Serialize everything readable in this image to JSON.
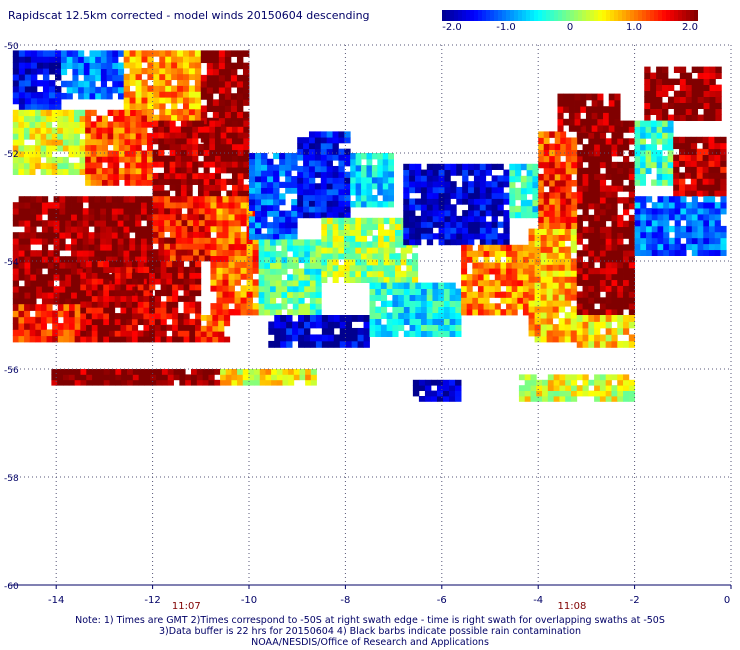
{
  "chart_data": {
    "type": "heatmap",
    "title": "Rapidscat 12.5km corrected - model winds 20150604 descending",
    "xlim": [
      -15,
      0
    ],
    "ylim": [
      -60,
      -50
    ],
    "x_ticks": [
      -14,
      -12,
      -10,
      -8,
      -6,
      -4,
      -2,
      0
    ],
    "y_ticks": [
      -50,
      -52,
      -54,
      -56,
      -58,
      -60
    ],
    "x_tick_labels": [
      "-14",
      "-12",
      "-10",
      "-8",
      "-6",
      "-4",
      "-2",
      "0"
    ],
    "y_tick_labels": [
      "-50",
      "-52",
      "-54",
      "-56",
      "-58",
      "-60"
    ],
    "grid": "dotted",
    "colorbar": {
      "range": [
        -2.0,
        2.0
      ],
      "tick_values": [
        -2.0,
        -1.0,
        0,
        1.0,
        2.0
      ],
      "tick_labels": [
        "-2.0",
        "-1.0",
        "0",
        "1.0",
        "2.0"
      ],
      "colors": [
        "#00008f",
        "#0000ff",
        "#0080ff",
        "#00ffff",
        "#80ff80",
        "#ffff00",
        "#ff8000",
        "#ff0000",
        "#800000"
      ]
    },
    "time_labels": [
      {
        "x": -11.3,
        "text": "11:07"
      },
      {
        "x": -3.3,
        "text": "11:08"
      }
    ],
    "regions": [
      {
        "x": [
          -14.9,
          -13.9
        ],
        "y": [
          -51.2,
          -50.1
        ],
        "value": -1.6
      },
      {
        "x": [
          -13.9,
          -12.6
        ],
        "y": [
          -51.0,
          -50.1
        ],
        "value": -1.1
      },
      {
        "x": [
          -12.6,
          -11.0
        ],
        "y": [
          -51.4,
          -50.1
        ],
        "value": 0.9
      },
      {
        "x": [
          -11.0,
          -10.0
        ],
        "y": [
          -51.8,
          -50.1
        ],
        "value": 2.0
      },
      {
        "x": [
          -14.9,
          -13.4
        ],
        "y": [
          -52.4,
          -51.2
        ],
        "value": 0.4
      },
      {
        "x": [
          -13.4,
          -12.0
        ],
        "y": [
          -52.6,
          -51.2
        ],
        "value": 1.2
      },
      {
        "x": [
          -12.0,
          -10.0
        ],
        "y": [
          -52.8,
          -51.4
        ],
        "value": 1.9
      },
      {
        "x": [
          -14.9,
          -12.0
        ],
        "y": [
          -54.8,
          -52.8
        ],
        "value": 2.0
      },
      {
        "x": [
          -12.0,
          -10.8
        ],
        "y": [
          -54.0,
          -52.8
        ],
        "value": 1.5
      },
      {
        "x": [
          -10.8,
          -9.8
        ],
        "y": [
          -55.0,
          -52.8
        ],
        "value": 1.1
      },
      {
        "x": [
          -14.9,
          -13.5
        ],
        "y": [
          -55.5,
          -54.8
        ],
        "value": 1.4
      },
      {
        "x": [
          -13.5,
          -11.0
        ],
        "y": [
          -55.5,
          -54.0
        ],
        "value": 1.8
      },
      {
        "x": [
          -11.0,
          -10.4
        ],
        "y": [
          -55.5,
          -55.0
        ],
        "value": 1.2
      },
      {
        "x": [
          -10.0,
          -9.0
        ],
        "y": [
          -53.6,
          -52.0
        ],
        "value": -1.2
      },
      {
        "x": [
          -9.0,
          -7.9
        ],
        "y": [
          -53.2,
          -51.6
        ],
        "value": -1.5
      },
      {
        "x": [
          -7.9,
          -7.0
        ],
        "y": [
          -53.0,
          -52.0
        ],
        "value": -0.6
      },
      {
        "x": [
          -9.8,
          -8.5
        ],
        "y": [
          -55.0,
          -53.6
        ],
        "value": -0.2
      },
      {
        "x": [
          -8.5,
          -6.5
        ],
        "y": [
          -54.4,
          -53.2
        ],
        "value": 0.1
      },
      {
        "x": [
          -9.6,
          -7.5
        ],
        "y": [
          -55.6,
          -55.0
        ],
        "value": -1.7
      },
      {
        "x": [
          -7.5,
          -5.6
        ],
        "y": [
          -55.4,
          -54.4
        ],
        "value": -0.5
      },
      {
        "x": [
          -6.8,
          -4.6
        ],
        "y": [
          -53.7,
          -52.2
        ],
        "value": -1.7
      },
      {
        "x": [
          -5.6,
          -4.2
        ],
        "y": [
          -55.0,
          -53.7
        ],
        "value": 1.0
      },
      {
        "x": [
          -4.6,
          -4.0
        ],
        "y": [
          -53.2,
          -52.2
        ],
        "value": -0.4
      },
      {
        "x": [
          -4.2,
          -3.2
        ],
        "y": [
          -55.5,
          -53.4
        ],
        "value": 0.8
      },
      {
        "x": [
          -3.2,
          -2.0
        ],
        "y": [
          -55.0,
          -51.4
        ],
        "value": 2.0
      },
      {
        "x": [
          -4.0,
          -3.2
        ],
        "y": [
          -53.4,
          -51.6
        ],
        "value": 1.3
      },
      {
        "x": [
          -3.6,
          -2.3
        ],
        "y": [
          -51.6,
          -50.9
        ],
        "value": 2.0
      },
      {
        "x": [
          -3.2,
          -2.0
        ],
        "y": [
          -55.6,
          -55.0
        ],
        "value": 0.6
      },
      {
        "x": [
          -1.8,
          -0.2
        ],
        "y": [
          -51.4,
          -50.4
        ],
        "value": 2.0
      },
      {
        "x": [
          -2.0,
          -1.2
        ],
        "y": [
          -52.6,
          -51.4
        ],
        "value": -0.3
      },
      {
        "x": [
          -1.2,
          -0.1
        ],
        "y": [
          -52.8,
          -51.7
        ],
        "value": 1.8
      },
      {
        "x": [
          -2.0,
          -0.1
        ],
        "y": [
          -53.9,
          -52.8
        ],
        "value": -1.1
      },
      {
        "x": [
          -4.4,
          -2.0
        ],
        "y": [
          -56.6,
          -56.1
        ],
        "value": 0.4
      },
      {
        "x": [
          -6.6,
          -5.6
        ],
        "y": [
          -56.6,
          -56.2
        ],
        "value": -1.9
      },
      {
        "x": [
          -14.1,
          -10.6
        ],
        "y": [
          -56.3,
          -56.0
        ],
        "value": 2.0
      },
      {
        "x": [
          -10.6,
          -8.6
        ],
        "y": [
          -56.3,
          -56.0
        ],
        "value": 0.5
      }
    ]
  },
  "footer": {
    "line1": "Note: 1) Times are GMT 2)Times correspond to -50S at right swath edge - time is right swath for overlapping swaths at -50S",
    "line2": "3)Data buffer is 22 hrs for 20150604 4) Black barbs indicate possible rain contamination",
    "line3": "NOAA/NESDIS/Office of Research and Applications"
  }
}
